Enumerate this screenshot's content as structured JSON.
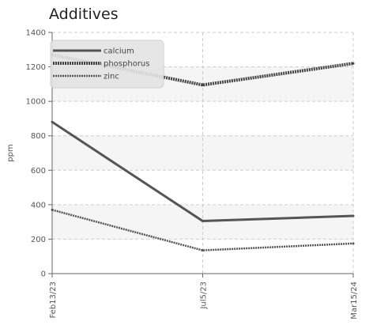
{
  "chart_data": {
    "type": "line",
    "title": "Additives",
    "xlabel": "",
    "ylabel": "ppm",
    "categories": [
      "Feb13/23",
      "Jul5/23",
      "Mar15/24"
    ],
    "ylim": [
      0,
      1400
    ],
    "yticks": [
      0,
      200,
      400,
      600,
      800,
      1000,
      1200,
      1400
    ],
    "grid": true,
    "legend_position": "top-left",
    "series": [
      {
        "name": "calcium",
        "values": [
          880,
          305,
          335
        ],
        "color": "#555555",
        "style": "solid"
      },
      {
        "name": "phosphorus",
        "values": [
          1270,
          1095,
          1220
        ],
        "color": "#444444",
        "style": "dense-dotted"
      },
      {
        "name": "zinc",
        "values": [
          370,
          135,
          175
        ],
        "color": "#555555",
        "style": "dotted"
      }
    ],
    "band_color": "#f5f5f5",
    "grid_color": "#cccccc"
  }
}
